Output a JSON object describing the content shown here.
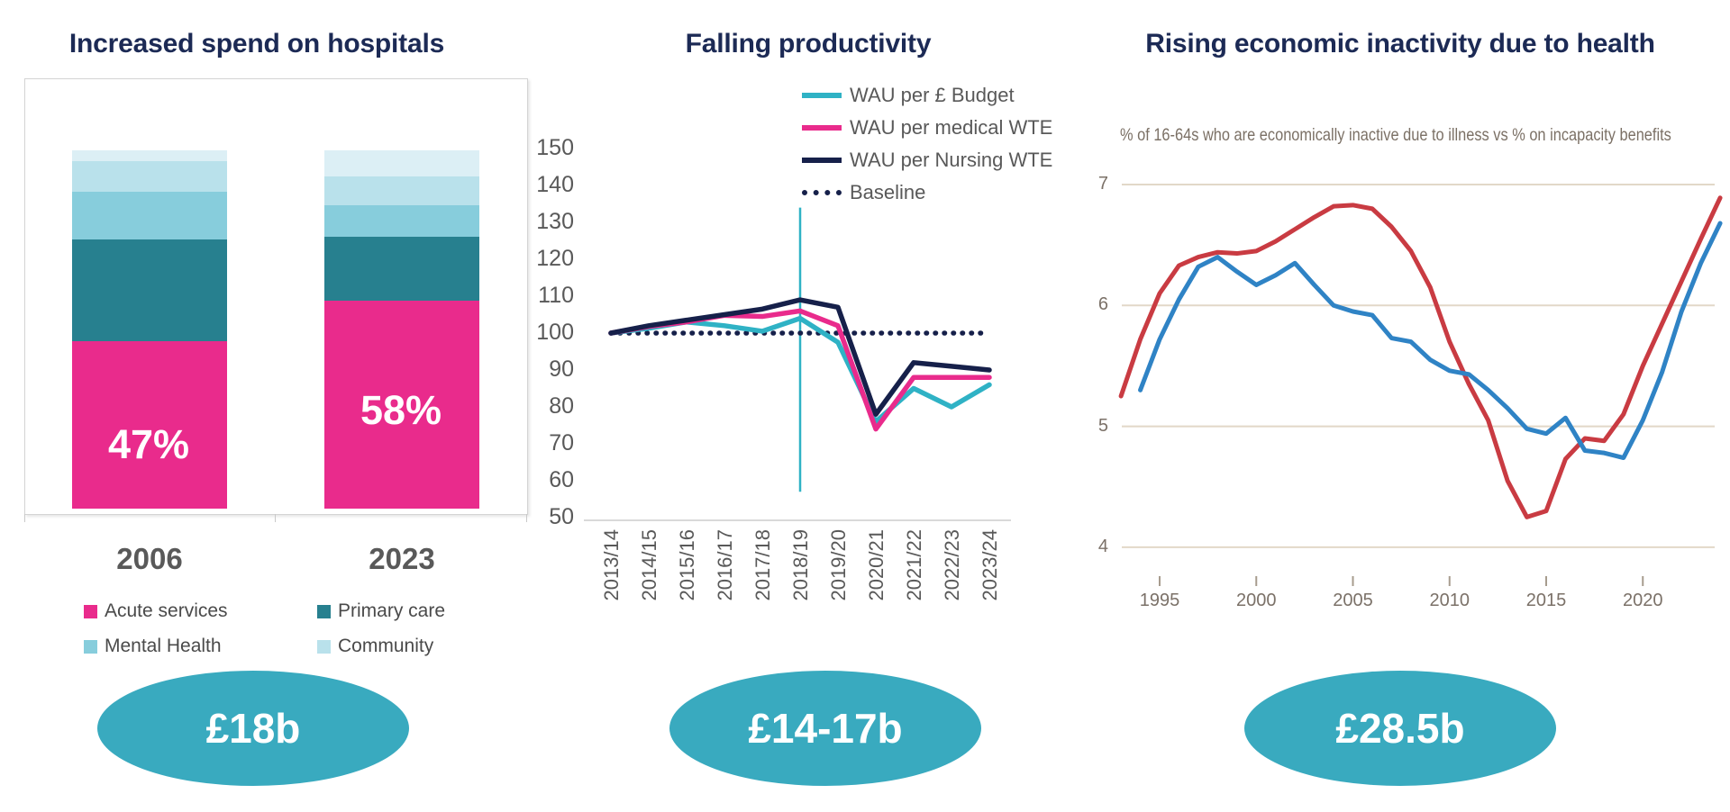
{
  "badge_color": "#39AABF",
  "panels": {
    "hospitals": {
      "title": "Increased spend on hospitals",
      "badge": "£18b"
    },
    "productivity": {
      "title": "Falling productivity",
      "badge": "£14-17b"
    },
    "inactivity": {
      "title": "Rising economic inactivity due to health",
      "subtitle": "% of 16-64s who are economically inactive due to illness vs % on incapacity benefits",
      "badge": "£28.5b"
    }
  },
  "chart_data": [
    {
      "type": "bar",
      "stacked": true,
      "unit": "percent",
      "title": "Increased spend on hospitals",
      "categories": [
        "2006",
        "2023"
      ],
      "series": [
        {
          "name": "Acute services",
          "color": "#E92B8C",
          "values": [
            47.0,
            58.0
          ]
        },
        {
          "name": "Primary care",
          "color": "#27808F",
          "values": [
            28.3,
            17.9
          ]
        },
        {
          "name": "Mental Health",
          "color": "#87CDDC",
          "values": [
            13.3,
            8.7
          ]
        },
        {
          "name": "Community",
          "color": "#B9E1EB",
          "values": [
            8.7,
            8.0
          ]
        },
        {
          "name": "Unlabeled top segment",
          "color": "#DCEFF5",
          "values": [
            3.0,
            7.4
          ]
        }
      ],
      "bar_labels": [
        "47%",
        "58%"
      ],
      "ylim": [
        0,
        100
      ],
      "legend_entries": [
        "Acute services",
        "Primary care",
        "Mental Health",
        "Community"
      ]
    },
    {
      "type": "line",
      "title": "Falling productivity",
      "x": [
        "2013/14",
        "2014/15",
        "2015/16",
        "2016/17",
        "2017/18",
        "2018/19",
        "2019/20",
        "2020/21",
        "2021/22",
        "2022/23",
        "2023/24"
      ],
      "ylim": [
        50,
        150
      ],
      "yticks": [
        150,
        140,
        130,
        120,
        110,
        100,
        90,
        80,
        70,
        60,
        50
      ],
      "legend_position": "top-right",
      "series": [
        {
          "name": "WAU per £ Budget",
          "color": "#2FB2C5",
          "values": [
            100,
            101.3,
            103,
            102,
            100.5,
            104,
            97.5,
            76,
            85,
            80,
            86
          ]
        },
        {
          "name": "WAU per medical WTE",
          "color": "#E92B8C",
          "values": [
            100,
            101.8,
            103,
            104.8,
            104.5,
            106,
            102,
            74,
            88,
            88,
            88
          ]
        },
        {
          "name": "WAU per Nursing WTE",
          "color": "#16204A",
          "values": [
            100,
            102,
            103.5,
            105,
            106.5,
            109,
            107,
            78,
            92,
            91,
            90
          ]
        },
        {
          "name": "Baseline",
          "color": "#16204A",
          "style": "dotted",
          "values": [
            100,
            100,
            100,
            100,
            100,
            100,
            100,
            100,
            100,
            100,
            100
          ]
        }
      ],
      "vline": {
        "at": "2018/19",
        "color": "#2FB2C5",
        "from": 57,
        "to": 134
      }
    },
    {
      "type": "line",
      "title": "Rising economic inactivity due to health",
      "subtitle": "% of 16-64s who are economically inactive due to illness vs % on incapacity benefits",
      "x_range": [
        1993,
        2024
      ],
      "xticks": [
        1995,
        2000,
        2005,
        2010,
        2015,
        2020
      ],
      "ylim": [
        4,
        7
      ],
      "yticks": [
        7,
        6,
        5,
        4
      ],
      "grid": "horizontal",
      "series": [
        {
          "name": "Economically inactive due to illness",
          "color": "#C93B42",
          "start_year": 1993,
          "values": [
            5.25,
            5.72,
            6.1,
            6.33,
            6.4,
            6.44,
            6.43,
            6.45,
            6.53,
            6.63,
            6.73,
            6.82,
            6.83,
            6.8,
            6.65,
            6.45,
            6.15,
            5.7,
            5.35,
            5.05,
            4.55,
            4.25,
            4.3,
            4.73,
            4.9,
            4.88,
            5.1,
            5.5,
            5.85,
            6.2,
            6.55,
            6.89
          ]
        },
        {
          "name": "On incapacity benefits",
          "color": "#2F83C5",
          "start_year": 1994,
          "values": [
            5.3,
            5.72,
            6.05,
            6.32,
            6.4,
            6.28,
            6.17,
            6.25,
            6.35,
            6.17,
            6.0,
            5.95,
            5.92,
            5.73,
            5.7,
            5.55,
            5.46,
            5.43,
            5.3,
            5.15,
            4.98,
            4.94,
            5.07,
            4.8,
            4.78,
            4.74,
            5.05,
            5.45,
            5.95,
            6.35,
            6.68
          ]
        }
      ]
    }
  ]
}
